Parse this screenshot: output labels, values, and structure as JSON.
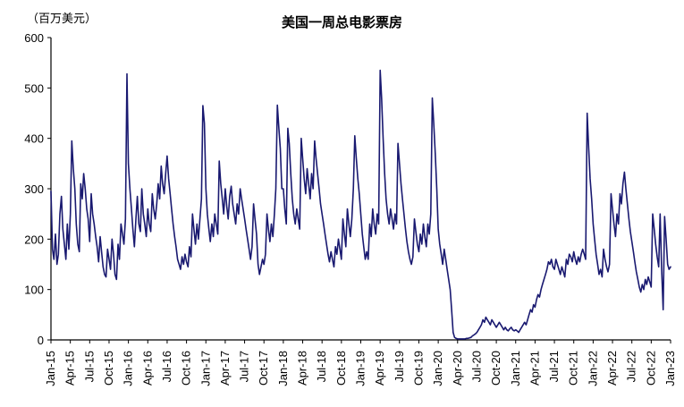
{
  "title": "美国一周总电影票房",
  "unit_label": "（百万美元）",
  "chart_data": {
    "type": "line",
    "title": "美国一周总电影票房",
    "ylabel": "（百万美元）",
    "legend": [],
    "grid": false,
    "line_color": "#191970",
    "ylim": [
      0,
      600
    ],
    "yticks": [
      0,
      100,
      200,
      300,
      400,
      500,
      600
    ],
    "x_frequency": "weekly",
    "x_range": [
      "Jan-15",
      "Jan-23"
    ],
    "xtick_labels": [
      "Jan-15",
      "Apr-15",
      "Jul-15",
      "Oct-15",
      "Jan-16",
      "Apr-16",
      "Jul-16",
      "Oct-16",
      "Jan-17",
      "Apr-17",
      "Jul-17",
      "Oct-17",
      "Jan-18",
      "Apr-18",
      "Jul-18",
      "Oct-18",
      "Jan-19",
      "Apr-19",
      "Jul-19",
      "Oct-19",
      "Jan-20",
      "Apr-20",
      "Jul-20",
      "Oct-20",
      "Jan-21",
      "Apr-21",
      "Jul-21",
      "Oct-21",
      "Jan-22",
      "Apr-22",
      "Jul-22",
      "Oct-22",
      "Jan-23"
    ],
    "values": [
      295,
      180,
      160,
      210,
      150,
      170,
      250,
      285,
      220,
      190,
      160,
      230,
      180,
      250,
      395,
      340,
      300,
      230,
      190,
      175,
      310,
      280,
      330,
      300,
      260,
      240,
      195,
      290,
      250,
      230,
      205,
      185,
      155,
      205,
      175,
      145,
      130,
      125,
      180,
      160,
      140,
      200,
      170,
      130,
      120,
      190,
      160,
      230,
      210,
      190,
      240,
      528,
      350,
      300,
      260,
      220,
      185,
      240,
      285,
      230,
      215,
      300,
      250,
      230,
      205,
      260,
      230,
      215,
      290,
      260,
      240,
      270,
      310,
      280,
      345,
      310,
      290,
      330,
      365,
      320,
      290,
      260,
      230,
      205,
      185,
      160,
      150,
      140,
      165,
      150,
      170,
      155,
      145,
      185,
      165,
      250,
      220,
      190,
      230,
      200,
      240,
      280,
      465,
      430,
      300,
      250,
      220,
      195,
      230,
      205,
      250,
      230,
      210,
      355,
      310,
      280,
      250,
      300,
      265,
      240,
      285,
      305,
      270,
      250,
      230,
      270,
      250,
      300,
      280,
      260,
      240,
      220,
      200,
      180,
      160,
      185,
      270,
      240,
      210,
      150,
      130,
      145,
      160,
      150,
      170,
      250,
      220,
      195,
      230,
      205,
      250,
      300,
      466,
      420,
      380,
      300,
      300,
      260,
      230,
      420,
      390,
      330,
      280,
      250,
      230,
      260,
      240,
      220,
      400,
      360,
      320,
      290,
      340,
      310,
      280,
      330,
      300,
      395,
      360,
      330,
      300,
      270,
      250,
      230,
      210,
      190,
      170,
      155,
      175,
      160,
      145,
      185,
      170,
      200,
      180,
      160,
      240,
      210,
      185,
      260,
      230,
      205,
      240,
      300,
      405,
      360,
      320,
      290,
      250,
      210,
      185,
      160,
      175,
      160,
      230,
      205,
      260,
      230,
      210,
      250,
      230,
      535,
      480,
      400,
      330,
      280,
      250,
      230,
      260,
      240,
      220,
      250,
      230,
      390,
      350,
      310,
      280,
      250,
      220,
      195,
      175,
      160,
      150,
      165,
      240,
      215,
      190,
      175,
      210,
      190,
      230,
      205,
      185,
      230,
      210,
      250,
      480,
      430,
      370,
      300,
      220,
      190,
      170,
      150,
      180,
      160,
      140,
      120,
      100,
      60,
      15,
      5,
      3,
      2,
      2,
      2,
      2,
      2,
      2,
      3,
      3,
      4,
      5,
      8,
      10,
      12,
      15,
      20,
      25,
      30,
      40,
      35,
      45,
      40,
      35,
      30,
      40,
      35,
      30,
      25,
      30,
      35,
      30,
      25,
      20,
      25,
      20,
      18,
      22,
      25,
      20,
      18,
      20,
      18,
      15,
      20,
      25,
      30,
      35,
      30,
      40,
      50,
      60,
      55,
      70,
      65,
      80,
      90,
      85,
      100,
      110,
      120,
      130,
      140,
      155,
      150,
      160,
      145,
      140,
      160,
      150,
      140,
      130,
      145,
      135,
      125,
      160,
      150,
      170,
      165,
      155,
      175,
      160,
      150,
      165,
      155,
      170,
      180,
      170,
      160,
      450,
      380,
      320,
      280,
      230,
      200,
      170,
      150,
      130,
      140,
      125,
      180,
      160,
      145,
      135,
      150,
      290,
      260,
      230,
      205,
      250,
      230,
      290,
      270,
      310,
      333,
      300,
      270,
      240,
      215,
      195,
      175,
      155,
      135,
      120,
      105,
      95,
      110,
      100,
      120,
      110,
      125,
      115,
      105,
      250,
      220,
      190,
      165,
      145,
      250,
      140,
      60,
      245,
      200,
      150,
      140,
      145
    ]
  }
}
